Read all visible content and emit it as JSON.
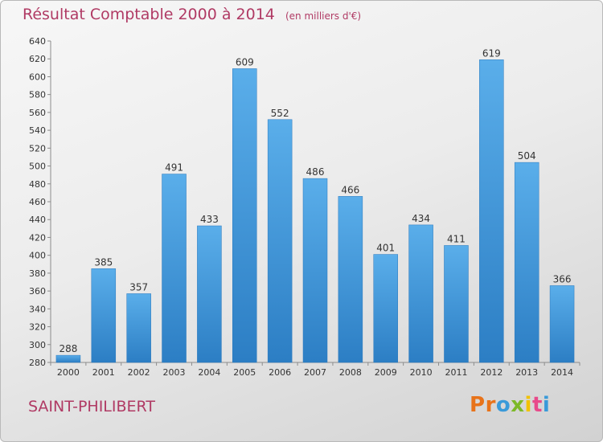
{
  "header": {
    "title": "Résultat Comptable 2000 à 2014",
    "unit": "(en milliers d'€)"
  },
  "footer": {
    "commune": "SAINT-PHILIBERT",
    "brand": "Proxiti",
    "brand_colors": [
      "#e8731a",
      "#e8731a",
      "#3a9ad9",
      "#7db928",
      "#f2c200",
      "#e84a8a",
      "#3a9ad9"
    ]
  },
  "colors": {
    "title": "#b03a64",
    "bar_light": "#5aaeea",
    "bar_dark": "#2c7ec4",
    "axis": "#8c8c8c",
    "text": "#333333"
  },
  "chart_data": {
    "type": "bar",
    "title": "Résultat Comptable 2000 à 2014",
    "categories": [
      "2000",
      "2001",
      "2002",
      "2003",
      "2004",
      "2005",
      "2006",
      "2007",
      "2008",
      "2009",
      "2010",
      "2011",
      "2012",
      "2013",
      "2014"
    ],
    "values": [
      288,
      385,
      357,
      491,
      433,
      609,
      552,
      486,
      466,
      401,
      434,
      411,
      619,
      504,
      366
    ],
    "ylim": [
      280,
      640
    ],
    "yticks": [
      280,
      300,
      320,
      340,
      360,
      380,
      400,
      420,
      440,
      460,
      480,
      500,
      520,
      540,
      560,
      580,
      600,
      620,
      640
    ],
    "grid": false,
    "data_labels": true
  }
}
